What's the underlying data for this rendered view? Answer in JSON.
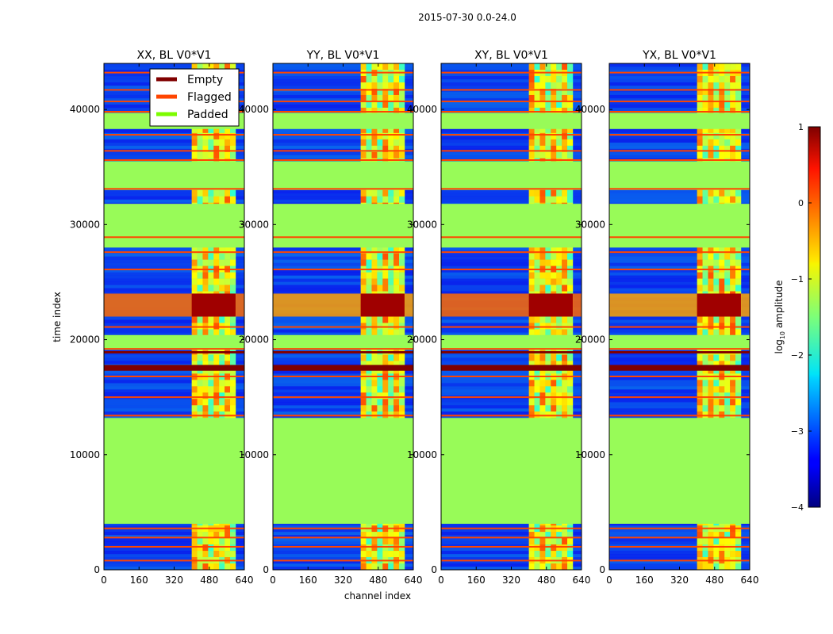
{
  "figure_title": "2015-07-30 0.0-24.0",
  "chart_data": {
    "type": "heatmap",
    "title": "2015-07-30 0.0-24.0",
    "xlabel": "channel index",
    "ylabel": "time index",
    "xlim": [
      0,
      640
    ],
    "ylim": [
      0,
      44000
    ],
    "x_ticks": [
      0,
      160,
      320,
      480,
      640
    ],
    "y_ticks": [
      0,
      10000,
      20000,
      30000,
      40000
    ],
    "panels": [
      {
        "title": "XX, BL V0*V1",
        "pol": "XX"
      },
      {
        "title": "YY, BL V0*V1",
        "pol": "YY"
      },
      {
        "title": "XY, BL V0*V1",
        "pol": "XY"
      },
      {
        "title": "YX, BL V0*V1",
        "pol": "YX"
      }
    ],
    "legend": {
      "placement": "top-right of first panel",
      "entries": [
        {
          "label": "Empty",
          "color": "#800000"
        },
        {
          "label": "Flagged",
          "color": "#ff4500"
        },
        {
          "label": "Padded",
          "color": "#7cfc00"
        }
      ]
    },
    "colorbar": {
      "label": "log₁₀ amplitude",
      "label_main": "log",
      "label_sub": "10",
      "label_rest": " amplitude",
      "min": -4,
      "max": 1,
      "ticks": [
        1,
        0,
        -1,
        -2,
        -3,
        -4
      ],
      "tick_labels": [
        "1",
        "0",
        "−1",
        "−2",
        "−3",
        "−4"
      ]
    },
    "padded_time_ranges": [
      [
        4000,
        13200
      ],
      [
        19100,
        20400
      ],
      [
        28000,
        31800
      ],
      [
        33000,
        35500
      ],
      [
        38300,
        39700
      ]
    ],
    "empty_time_ranges": [
      [
        17300,
        17800
      ],
      [
        18800,
        19000
      ]
    ],
    "flagged_time_lines": [
      800,
      2000,
      2800,
      3600,
      13400,
      15000,
      16800,
      19200,
      21100,
      26100,
      27600,
      28900,
      33100,
      35600,
      36400,
      37800,
      39800,
      40700,
      41700,
      43200
    ],
    "rfi_channel_range": [
      400,
      600
    ],
    "colors": {
      "background_noise": "#1450d8",
      "padded": "#98fb58",
      "empty": "#800000",
      "flagged": "#ff4500"
    }
  }
}
